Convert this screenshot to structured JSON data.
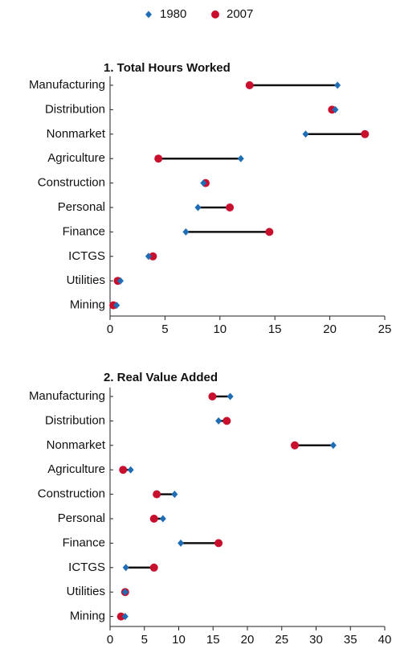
{
  "chart_data": [
    {
      "type": "dumbbell",
      "title": "1. Total Hours Worked",
      "categories": [
        "Manufacturing",
        "Distribution",
        "Nonmarket",
        "Agriculture",
        "Construction",
        "Personal",
        "Finance",
        "ICTGS",
        "Utilities",
        "Mining"
      ],
      "series": [
        {
          "name": "1980",
          "color": "#1f6db5",
          "marker": "diamond",
          "values": [
            20.7,
            20.5,
            17.8,
            11.9,
            8.5,
            8.0,
            6.9,
            3.5,
            0.95,
            0.6
          ]
        },
        {
          "name": "2007",
          "color": "#c8102e",
          "marker": "circle",
          "values": [
            12.7,
            20.2,
            23.2,
            4.4,
            8.7,
            10.9,
            14.5,
            3.9,
            0.7,
            0.3
          ]
        }
      ],
      "xlim": [
        0,
        25
      ],
      "xticks": [
        0,
        5,
        10,
        15,
        20,
        25
      ]
    },
    {
      "type": "dumbbell",
      "title": "2. Real Value Added",
      "categories": [
        "Manufacturing",
        "Distribution",
        "Nonmarket",
        "Agriculture",
        "Construction",
        "Personal",
        "Finance",
        "ICTGS",
        "Utilities",
        "Mining"
      ],
      "series": [
        {
          "name": "1980",
          "color": "#1f6db5",
          "marker": "diamond",
          "values": [
            17.5,
            15.8,
            32.5,
            3.0,
            9.4,
            7.7,
            10.3,
            2.3,
            2.2,
            2.2
          ]
        },
        {
          "name": "2007",
          "color": "#c8102e",
          "marker": "circle",
          "values": [
            14.9,
            17.0,
            26.9,
            1.9,
            6.8,
            6.4,
            15.8,
            6.4,
            2.2,
            1.6
          ]
        }
      ],
      "xlim": [
        0,
        40
      ],
      "xticks": [
        0,
        5,
        10,
        15,
        20,
        25,
        30,
        35,
        40
      ]
    }
  ]
}
